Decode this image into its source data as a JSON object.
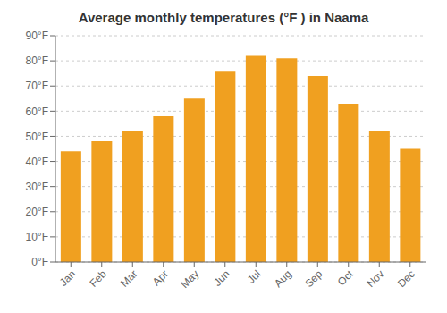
{
  "chart_data": {
    "type": "bar",
    "title": "Average monthly temperatures (°F ) in Naama",
    "categories": [
      "Jan",
      "Feb",
      "Mar",
      "Apr",
      "May",
      "Jun",
      "Jul",
      "Aug",
      "Sep",
      "Oct",
      "Nov",
      "Dec"
    ],
    "values": [
      44,
      48,
      52,
      58,
      65,
      76,
      82,
      81,
      74,
      63,
      52,
      45
    ],
    "color": "#F0A020",
    "ylim": [
      0,
      90
    ],
    "yticks": [
      {
        "value": 0,
        "label": "0°F"
      },
      {
        "value": 10,
        "label": "10°F"
      },
      {
        "value": 20,
        "label": "20°F"
      },
      {
        "value": 30,
        "label": "30°F"
      },
      {
        "value": 40,
        "label": "40°F"
      },
      {
        "value": 50,
        "label": "50°F"
      },
      {
        "value": 60,
        "label": "60°F"
      },
      {
        "value": 70,
        "label": "70°F"
      },
      {
        "value": 80,
        "label": "80°F"
      },
      {
        "value": 90,
        "label": "90°F"
      }
    ],
    "grid": true
  }
}
